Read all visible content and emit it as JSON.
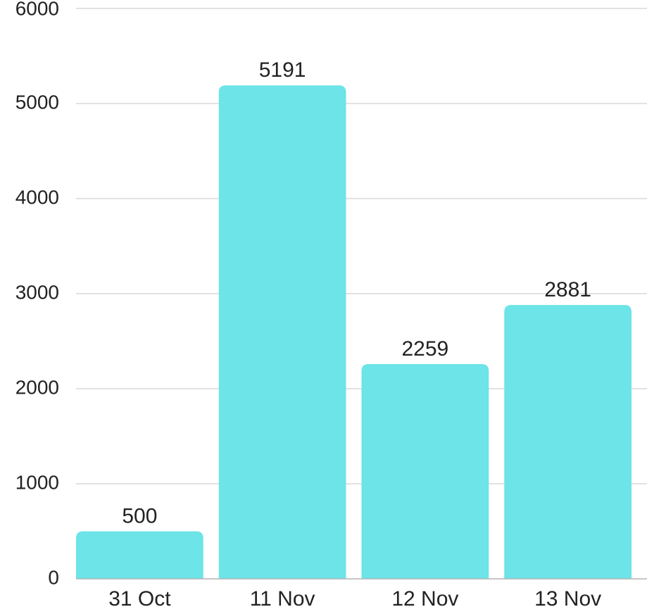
{
  "chart_data": {
    "type": "bar",
    "categories": [
      "31 Oct",
      "11 Nov",
      "12 Nov",
      "13 Nov"
    ],
    "values": [
      500,
      5191,
      2259,
      2881
    ],
    "data_labels": [
      "500",
      "5191",
      "2259",
      "2881"
    ],
    "title": "",
    "xlabel": "",
    "ylabel": "",
    "ylim": [
      0,
      6000
    ],
    "yticks": [
      "0",
      "1000",
      "2000",
      "3000",
      "4000",
      "5000",
      "6000"
    ],
    "grid": true,
    "legend": "none",
    "colors": {
      "bar": "#6ce4e8",
      "grid": "#d9d9d9",
      "axis": "#b3b3b3",
      "text": "#222222"
    }
  }
}
